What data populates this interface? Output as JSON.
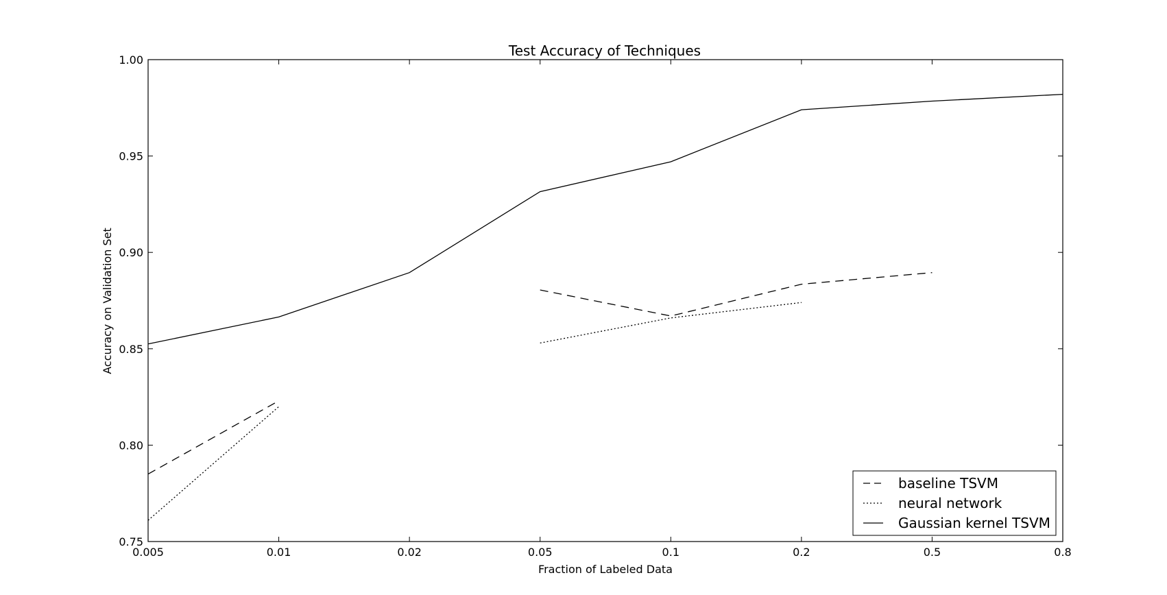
{
  "chart_data": {
    "type": "line",
    "title": "Test Accuracy of Techniques",
    "xlabel": "Fraction of Labeled Data",
    "ylabel": "Accuracy on Validation Set",
    "x_scale": "categorical",
    "x": [
      "0.005",
      "0.01",
      "0.02",
      "0.05",
      "0.1",
      "0.2",
      "0.5",
      "0.8"
    ],
    "ylim": [
      0.75,
      1.0
    ],
    "yticks": [
      "0.75",
      "0.80",
      "0.85",
      "0.90",
      "0.95",
      "1.00"
    ],
    "grid": false,
    "legend_position": "bottom-right",
    "series": [
      {
        "name": "baseline TSVM",
        "style": "dashed",
        "color": "#000000",
        "values": [
          0.785,
          0.823,
          null,
          0.8805,
          0.867,
          0.8835,
          0.8895,
          null
        ]
      },
      {
        "name": "neural network",
        "style": "dotted",
        "color": "#000000",
        "values": [
          0.761,
          0.82,
          null,
          0.853,
          0.866,
          0.874,
          null,
          null
        ]
      },
      {
        "name": "Gaussian kernel TSVM",
        "style": "solid",
        "color": "#000000",
        "values": [
          0.8525,
          0.8665,
          0.8895,
          0.9315,
          0.947,
          0.974,
          0.9785,
          0.982
        ]
      }
    ]
  }
}
